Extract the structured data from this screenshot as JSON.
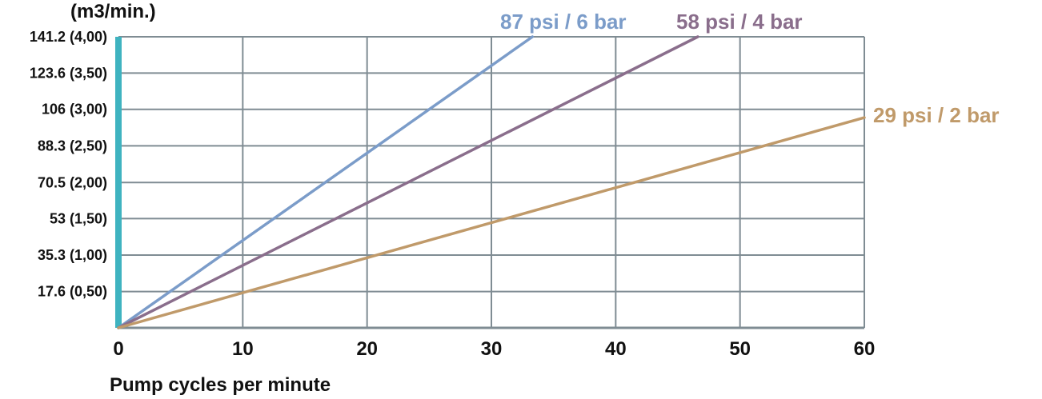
{
  "chart_data": {
    "type": "line",
    "ylabel": "(m3/min.)",
    "xlabel": "Pump cycles per minute",
    "xlim": [
      0,
      60
    ],
    "ylim": [
      0,
      141.2
    ],
    "x_ticks": [
      0,
      10,
      20,
      30,
      40,
      50,
      60
    ],
    "y_ticks": [
      {
        "value": 17.6,
        "label": "17.6 (0,50)"
      },
      {
        "value": 35.3,
        "label": "35.3 (1,00)"
      },
      {
        "value": 53,
        "label": "53 (1,50)"
      },
      {
        "value": 70.5,
        "label": "70.5 (2,00)"
      },
      {
        "value": 88.3,
        "label": "88.3 (2,50)"
      },
      {
        "value": 106,
        "label": "106 (3,00)"
      },
      {
        "value": 123.6,
        "label": "123.6 (3,50)"
      },
      {
        "value": 141.2,
        "label": "141.2 (4,00)"
      }
    ],
    "grid": true,
    "series": [
      {
        "name": "87 psi / 6 bar",
        "color": "#7b9cc9",
        "x": [
          0,
          33.3
        ],
        "y": [
          0,
          141.2
        ]
      },
      {
        "name": "58 psi / 4 bar",
        "color": "#8a6e8c",
        "x": [
          0,
          46.6
        ],
        "y": [
          0,
          141.2
        ]
      },
      {
        "name": "29 psi / 2 bar",
        "color": "#c09a6a",
        "x": [
          0,
          60
        ],
        "y": [
          0,
          102
        ]
      }
    ],
    "colors": {
      "grid": "#7f8c93",
      "axis_bar": "#3fb3c0"
    }
  }
}
